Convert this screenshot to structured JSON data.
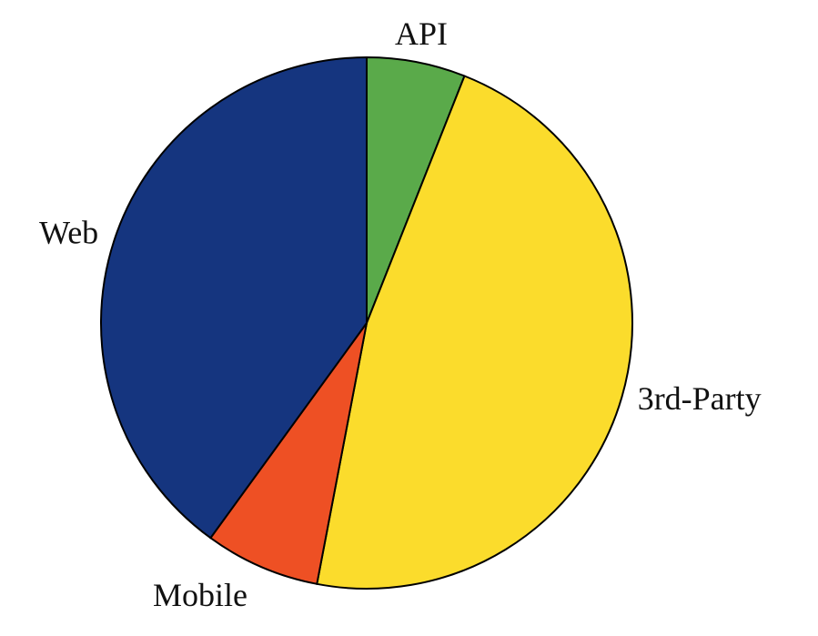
{
  "chart_data": {
    "type": "pie",
    "categories": [
      "API",
      "3rd-Party",
      "Mobile",
      "Web"
    ],
    "values": [
      6,
      47,
      7,
      40
    ],
    "colors": [
      "#5aaa4a",
      "#fbdc2c",
      "#ee5024",
      "#15357f"
    ],
    "start_angle": 0,
    "direction": "clockwise"
  }
}
